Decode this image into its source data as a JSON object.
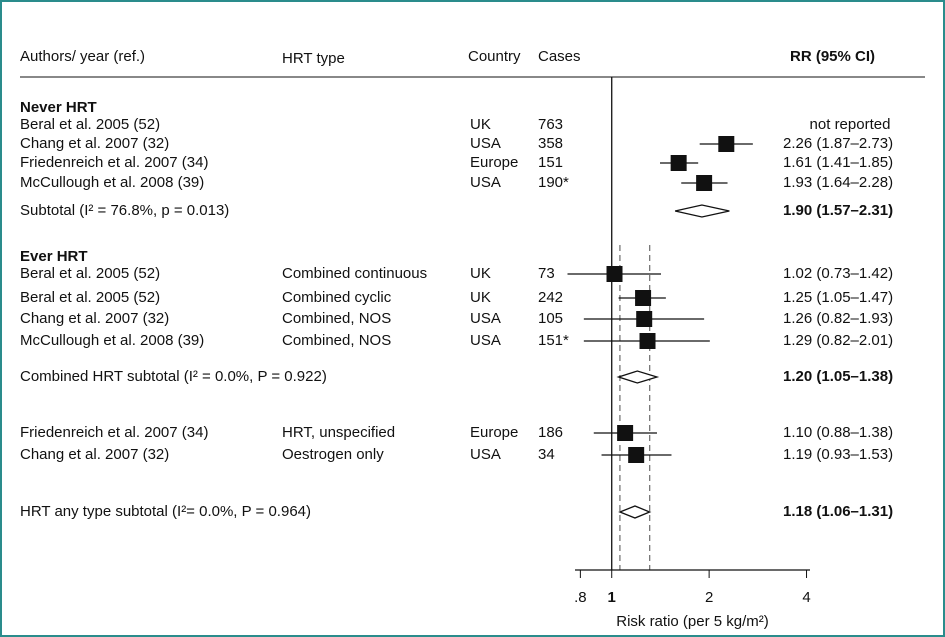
{
  "chart_data": {
    "type": "forest",
    "headers": {
      "author": "Authors/ year (ref.)",
      "hrt_type": "HRT type",
      "country": "Country",
      "cases": "Cases",
      "ci": "RR (95% CI)"
    },
    "rows": [
      {
        "kind": "heading",
        "author": "Never HRT"
      },
      {
        "kind": "study",
        "author": "Beral et al. 2005 (52)",
        "country": "UK",
        "cases": "763",
        "ci_label": "not reported",
        "rr": null,
        "lo": null,
        "hi": null
      },
      {
        "kind": "study",
        "author": "Chang et al. 2007 (32)",
        "country": "USA",
        "cases": "358",
        "ci_label": "2.26 (1.87–2.73)",
        "rr": 2.26,
        "lo": 1.87,
        "hi": 2.73
      },
      {
        "kind": "study",
        "author": "Friedenreich et al. 2007 (34)",
        "country": "Europe",
        "cases": "151",
        "ci_label": "1.61 (1.41–1.85)",
        "rr": 1.61,
        "lo": 1.41,
        "hi": 1.85
      },
      {
        "kind": "study",
        "author": "McCullough et al. 2008 (39)",
        "country": "USA",
        "cases": "190*",
        "ci_label": "1.93 (1.64–2.28)",
        "rr": 1.93,
        "lo": 1.64,
        "hi": 2.28
      },
      {
        "kind": "subtotal",
        "author": "Subtotal  (I² = 76.8%, p = 0.013)",
        "ci_label": "1.90 (1.57–2.31)",
        "rr": 1.9,
        "lo": 1.57,
        "hi": 2.31
      },
      {
        "kind": "heading",
        "author": "Ever HRT"
      },
      {
        "kind": "study",
        "author": "Beral et al. 2005 (52)",
        "hrt_type": "Combined continuous",
        "country": "UK",
        "cases": "73",
        "ci_label": "1.02 (0.73–1.42)",
        "rr": 1.02,
        "lo": 0.73,
        "hi": 1.42
      },
      {
        "kind": "study",
        "author": "Beral et al. 2005 (52)",
        "hrt_type": "Combined cyclic",
        "country": "UK",
        "cases": "242",
        "ci_label": "1.25 (1.05–1.47)",
        "rr": 1.25,
        "lo": 1.05,
        "hi": 1.47
      },
      {
        "kind": "study",
        "author": "Chang et al. 2007 (32)",
        "hrt_type": "Combined, NOS",
        "country": "USA",
        "cases": "105",
        "ci_label": "1.26 (0.82–1.93)",
        "rr": 1.26,
        "lo": 0.82,
        "hi": 1.93
      },
      {
        "kind": "study",
        "author": "McCullough et al. 2008 (39)",
        "hrt_type": "Combined, NOS",
        "country": "USA",
        "cases": "151*",
        "ci_label": "1.29 (0.82–2.01)",
        "rr": 1.29,
        "lo": 0.82,
        "hi": 2.01
      },
      {
        "kind": "subtotal",
        "author": "Combined HRT subtotal (I² = 0.0%, P = 0.922)",
        "ci_label": "1.20 (1.05–1.38)",
        "rr": 1.2,
        "lo": 1.05,
        "hi": 1.38
      },
      {
        "kind": "study",
        "author": "Friedenreich et al. 2007 (34)",
        "hrt_type": "HRT, unspecified",
        "country": "Europe",
        "cases": "186",
        "ci_label": "1.10 (0.88–1.38)",
        "rr": 1.1,
        "lo": 0.88,
        "hi": 1.38
      },
      {
        "kind": "study",
        "author": "Chang et al. 2007 (32)",
        "hrt_type": "Oestrogen only",
        "country": "USA",
        "cases": "34",
        "ci_label": "1.19 (0.93–1.53)",
        "rr": 1.19,
        "lo": 0.93,
        "hi": 1.53
      },
      {
        "kind": "subtotal",
        "author": "HRT any type subtotal  (I²= 0.0%, P = 0.964)",
        "ci_label": "1.18 (1.06–1.31)",
        "rr": 1.18,
        "lo": 1.06,
        "hi": 1.31
      }
    ],
    "x_label": "Risk ratio (per 5 kg/m²)",
    "xscale": "log",
    "xlim": [
      0.77,
      4.1
    ],
    "xticks": [
      {
        "value": 0.8,
        "label": ".8"
      },
      1,
      2,
      4
    ],
    "null_line": 1
  }
}
